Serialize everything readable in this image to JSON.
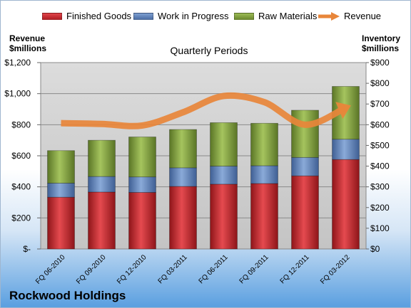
{
  "chart_data": {
    "type": "bar",
    "title": "Quarterly Periods",
    "company": "Rockwood Holdings",
    "categories": [
      "FQ 06-2010",
      "FQ 09-2010",
      "FQ 12-2010",
      "FQ 03-2011",
      "FQ 06-2011",
      "FQ 09-2011",
      "FQ 12-2011",
      "FQ 03-2012"
    ],
    "left_axis": {
      "title_line1": "Revenue",
      "title_line2": "$millions",
      "ylim": [
        0,
        1200
      ],
      "ticks": [
        "$-",
        "$200",
        "$400",
        "$600",
        "$800",
        "$1,000",
        "$1,200"
      ]
    },
    "right_axis": {
      "title_line1": "Inventory",
      "title_line2": "$millions",
      "ylim": [
        0,
        900
      ],
      "ticks": [
        "$0",
        "$100",
        "$200",
        "$300",
        "$400",
        "$500",
        "$600",
        "$700",
        "$800",
        "$900"
      ]
    },
    "stacked_series": [
      {
        "name": "Finished Goods",
        "color": "#c0262c",
        "axis": "right",
        "values": [
          250,
          275,
          273,
          302,
          313,
          316,
          353,
          432
        ]
      },
      {
        "name": "Work in Progress",
        "color": "#5b7fb8",
        "axis": "right",
        "values": [
          68,
          75,
          75,
          90,
          87,
          86,
          89,
          98
        ]
      },
      {
        "name": "Raw Materials",
        "color": "#7f9f3c",
        "axis": "right",
        "values": [
          157,
          175,
          193,
          185,
          210,
          205,
          228,
          255
        ]
      }
    ],
    "line_series": {
      "name": "Revenue",
      "color": "#e8863a",
      "axis": "left",
      "values": [
        810,
        805,
        795,
        880,
        985,
        945,
        800,
        910
      ]
    },
    "grid": true,
    "legend_position": "top"
  }
}
